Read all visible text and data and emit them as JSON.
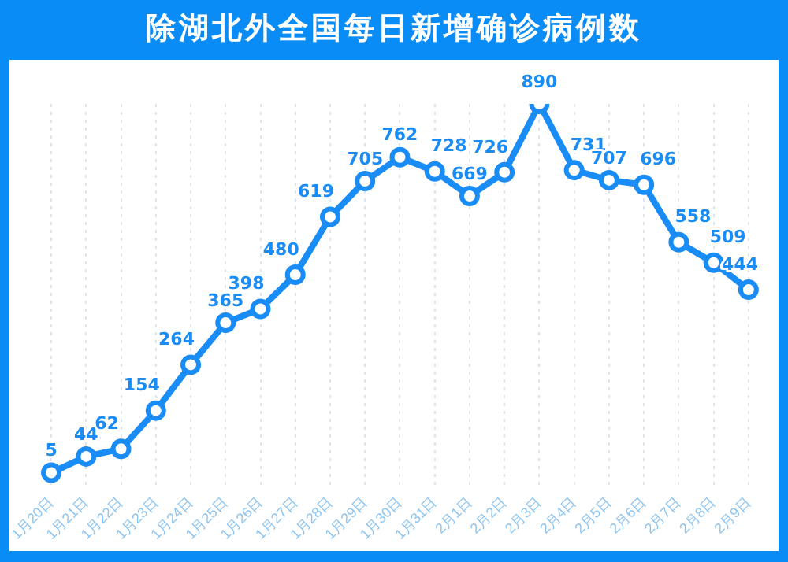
{
  "chart_data": {
    "type": "line",
    "title": "除湖北外全国每日新增确诊病例数",
    "categories": [
      "1月20日",
      "1月21日",
      "1月22日",
      "1月23日",
      "1月24日",
      "1月25日",
      "1月26日",
      "1月27日",
      "1月28日",
      "1月29日",
      "1月30日",
      "1月31日",
      "2月1日",
      "2月2日",
      "2月3日",
      "2月4日",
      "2月5日",
      "2月6日",
      "2月7日",
      "2月8日",
      "2月9日"
    ],
    "series": [
      {
        "color": "#1a8cf5",
        "values": [
          5,
          44,
          62,
          154,
          264,
          365,
          398,
          480,
          619,
          705,
          762,
          728,
          669,
          726,
          890,
          731,
          707,
          696,
          558,
          509,
          444
        ]
      }
    ],
    "data_labels": true,
    "grid": "x",
    "marker": "circle",
    "line_style": "solid",
    "legend": false
  }
}
